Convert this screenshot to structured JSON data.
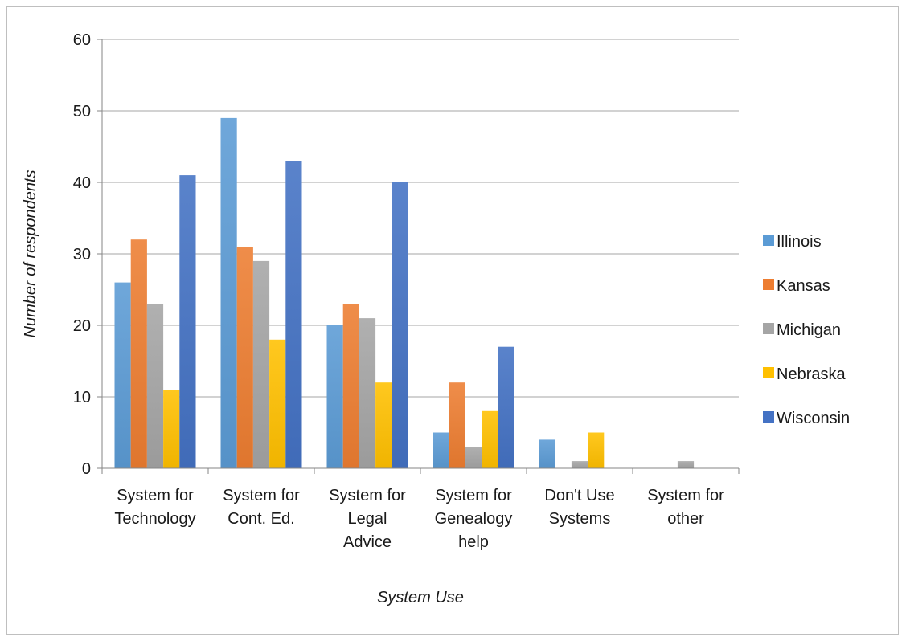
{
  "chart_data": {
    "type": "bar",
    "title": "",
    "xlabel": "System Use",
    "ylabel": "Number of respondents",
    "ylim": [
      0,
      60
    ],
    "yticks": [
      0,
      10,
      20,
      30,
      40,
      50,
      60
    ],
    "grid": true,
    "legend_position": "right",
    "categories": [
      [
        "System for",
        "Technology"
      ],
      [
        "System for",
        "Cont. Ed."
      ],
      [
        "System for",
        "Legal",
        "Advice"
      ],
      [
        "System for",
        "Genealogy",
        "help"
      ],
      [
        "Don't Use",
        "Systems"
      ],
      [
        "System for",
        "other"
      ]
    ],
    "series": [
      {
        "name": "Illinois",
        "color": "#5b9bd5",
        "values": [
          26,
          49,
          20,
          5,
          4,
          0
        ]
      },
      {
        "name": "Kansas",
        "color": "#ed7d31",
        "values": [
          32,
          31,
          23,
          12,
          0,
          0
        ]
      },
      {
        "name": "Michigan",
        "color": "#a5a5a5",
        "values": [
          23,
          29,
          21,
          3,
          1,
          1
        ]
      },
      {
        "name": "Nebraska",
        "color": "#ffc000",
        "values": [
          11,
          18,
          12,
          8,
          5,
          0
        ]
      },
      {
        "name": "Wisconsin",
        "color": "#4472c4",
        "values": [
          41,
          43,
          40,
          17,
          0,
          0
        ]
      }
    ]
  }
}
